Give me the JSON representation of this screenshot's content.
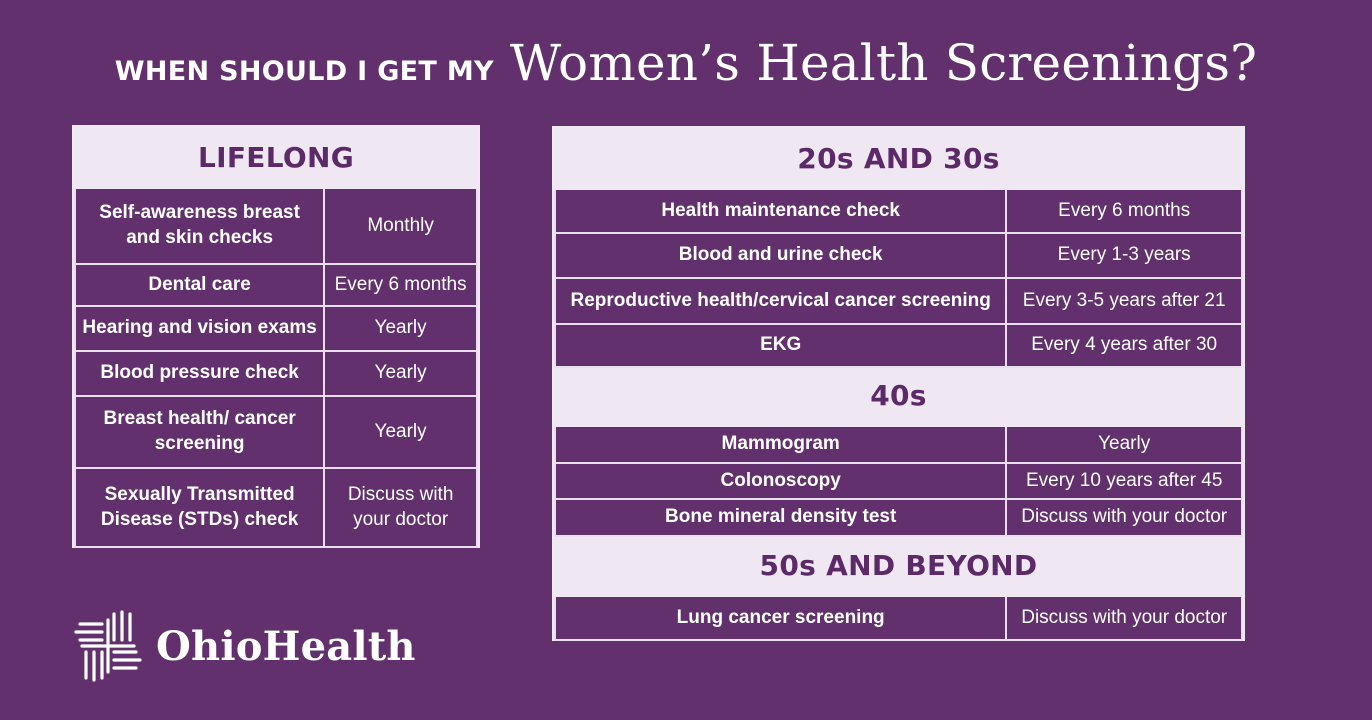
{
  "title": {
    "kicker": "WHEN SHOULD I GET MY",
    "main": "Women’s Health Screenings?"
  },
  "lifelong": {
    "heading": "LIFELONG",
    "rows": [
      {
        "item": "Self-awareness breast and skin checks",
        "freq": "Monthly"
      },
      {
        "item": "Dental care",
        "freq": "Every 6 months"
      },
      {
        "item": "Hearing and vision exams",
        "freq": "Yearly"
      },
      {
        "item": "Blood pressure check",
        "freq": "Yearly"
      },
      {
        "item": "Breast health/ cancer screening",
        "freq": "Yearly"
      },
      {
        "item": "Sexually Transmitted Disease (STDs) check",
        "freq": "Discuss with your doctor"
      }
    ]
  },
  "age_groups": [
    {
      "heading": "20s AND 30s",
      "rows": [
        {
          "item": "Health maintenance check",
          "freq": "Every 6 months"
        },
        {
          "item": "Blood and urine check",
          "freq": "Every 1-3 years"
        },
        {
          "item": "Reproductive health/cervical cancer screening",
          "freq": "Every 3-5 years after 21"
        },
        {
          "item": "EKG",
          "freq": "Every 4 years after 30"
        }
      ]
    },
    {
      "heading": "40s",
      "rows": [
        {
          "item": "Mammogram",
          "freq": "Yearly"
        },
        {
          "item": "Colonoscopy",
          "freq": "Every 10 years after 45"
        },
        {
          "item": "Bone mineral density test",
          "freq": "Discuss with your doctor"
        }
      ]
    },
    {
      "heading": "50s AND BEYOND",
      "rows": [
        {
          "item": "Lung cancer screening",
          "freq": "Discuss with your doctor"
        }
      ]
    }
  ],
  "brand": {
    "name": "OhioHealth",
    "logo_icon": "woven-square-icon",
    "background_color": "#62306d",
    "header_band_color": "#efe8f2"
  }
}
